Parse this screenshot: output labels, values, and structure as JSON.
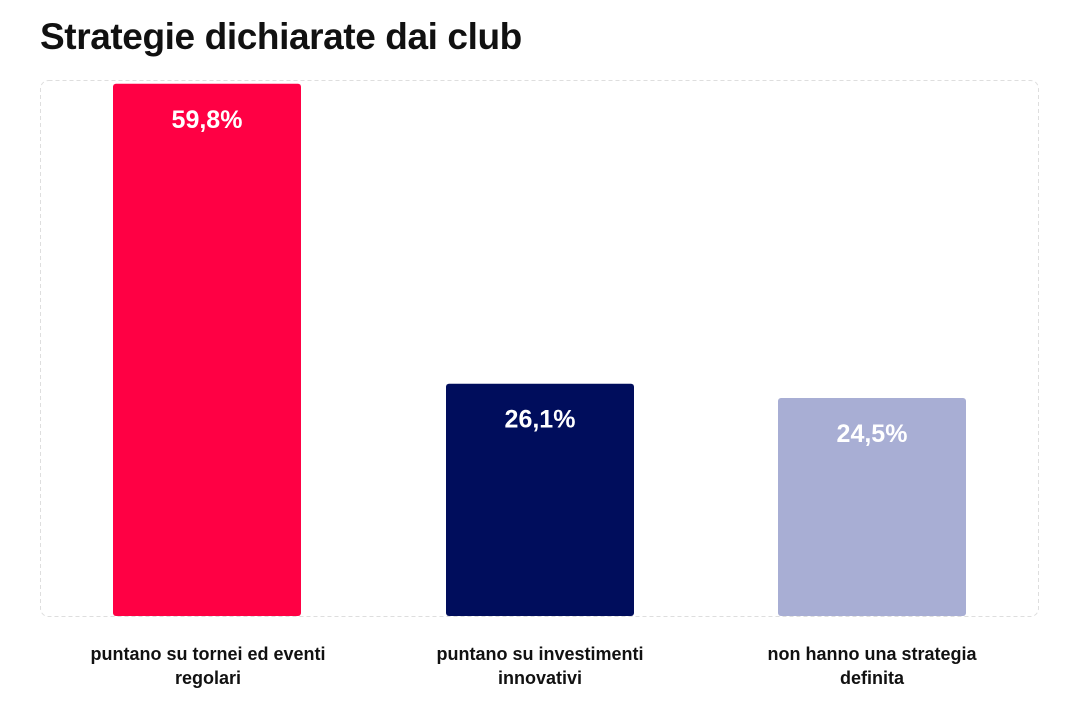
{
  "title": "Strategie dichiarate dai club",
  "colors": {
    "bar1": "#ff0044",
    "bar2": "#000d5c",
    "bar3": "#a8aed4",
    "frame": "#dedede"
  },
  "chart_data": {
    "type": "bar",
    "title": "Strategie dichiarate dai club",
    "xlabel": "",
    "ylabel": "",
    "ylim": [
      0,
      60
    ],
    "grid": false,
    "categories": [
      "puntano su tornei ed eventi regolari",
      "puntano su investimenti innovativi",
      "non hanno una strategia definita"
    ],
    "values": [
      59.8,
      26.1,
      24.5
    ],
    "value_labels": [
      "59,8%",
      "26,1%",
      "24,5%"
    ],
    "colors": [
      "#ff0044",
      "#000d5c",
      "#a8aed4"
    ]
  }
}
